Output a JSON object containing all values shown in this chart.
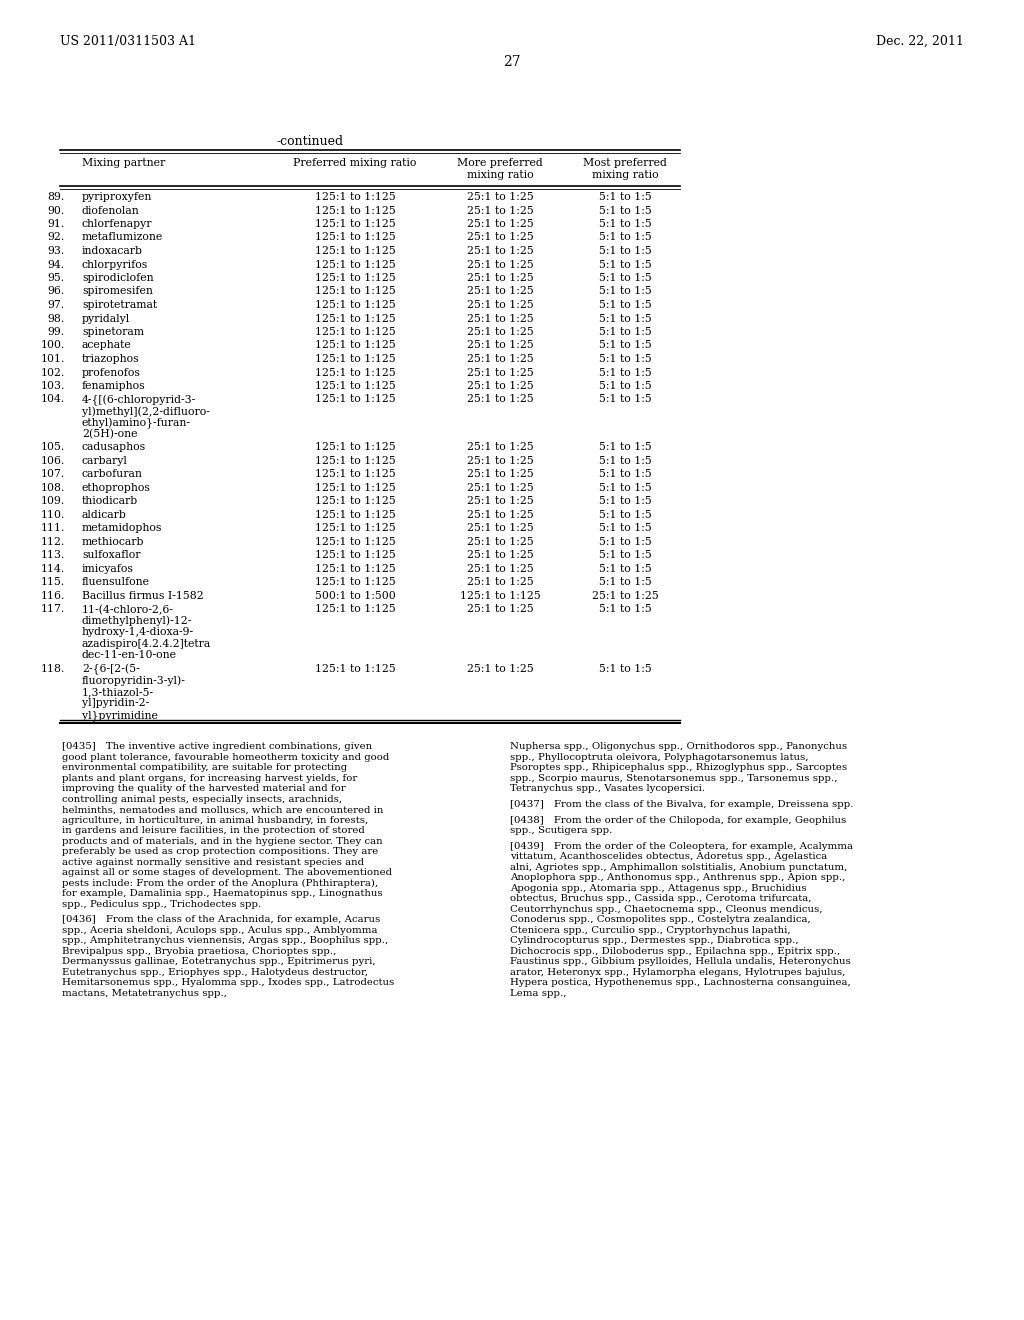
{
  "page_header_left": "US 2011/0311503 A1",
  "page_header_right": "Dec. 22, 2011",
  "page_number": "27",
  "continued_label": "-continued",
  "col_headers": [
    "Mixing partner",
    "Preferred mixing ratio",
    "More preferred\nmixing ratio",
    "Most preferred\nmixing ratio"
  ],
  "rows": [
    {
      "num": "89.",
      "name": "pyriproxyfen",
      "pref": "125:1 to 1:125",
      "more": "25:1 to 1:25",
      "most": "5:1 to 1:5"
    },
    {
      "num": "90.",
      "name": "diofenolan",
      "pref": "125:1 to 1:125",
      "more": "25:1 to 1:25",
      "most": "5:1 to 1:5"
    },
    {
      "num": "91.",
      "name": "chlorfenapyr",
      "pref": "125:1 to 1:125",
      "more": "25:1 to 1:25",
      "most": "5:1 to 1:5"
    },
    {
      "num": "92.",
      "name": "metaflumizone",
      "pref": "125:1 to 1:125",
      "more": "25:1 to 1:25",
      "most": "5:1 to 1:5"
    },
    {
      "num": "93.",
      "name": "indoxacarb",
      "pref": "125:1 to 1:125",
      "more": "25:1 to 1:25",
      "most": "5:1 to 1:5"
    },
    {
      "num": "94.",
      "name": "chlorpyrifos",
      "pref": "125:1 to 1:125",
      "more": "25:1 to 1:25",
      "most": "5:1 to 1:5"
    },
    {
      "num": "95.",
      "name": "spirodiclofen",
      "pref": "125:1 to 1:125",
      "more": "25:1 to 1:25",
      "most": "5:1 to 1:5"
    },
    {
      "num": "96.",
      "name": "spiromesifen",
      "pref": "125:1 to 1:125",
      "more": "25:1 to 1:25",
      "most": "5:1 to 1:5"
    },
    {
      "num": "97.",
      "name": "spirotetramat",
      "pref": "125:1 to 1:125",
      "more": "25:1 to 1:25",
      "most": "5:1 to 1:5"
    },
    {
      "num": "98.",
      "name": "pyridalyl",
      "pref": "125:1 to 1:125",
      "more": "25:1 to 1:25",
      "most": "5:1 to 1:5"
    },
    {
      "num": "99.",
      "name": "spinetoram",
      "pref": "125:1 to 1:125",
      "more": "25:1 to 1:25",
      "most": "5:1 to 1:5"
    },
    {
      "num": "100.",
      "name": "acephate",
      "pref": "125:1 to 1:125",
      "more": "25:1 to 1:25",
      "most": "5:1 to 1:5"
    },
    {
      "num": "101.",
      "name": "triazophos",
      "pref": "125:1 to 1:125",
      "more": "25:1 to 1:25",
      "most": "5:1 to 1:5"
    },
    {
      "num": "102.",
      "name": "profenofos",
      "pref": "125:1 to 1:125",
      "more": "25:1 to 1:25",
      "most": "5:1 to 1:5"
    },
    {
      "num": "103.",
      "name": "fenamiphos",
      "pref": "125:1 to 1:125",
      "more": "25:1 to 1:25",
      "most": "5:1 to 1:5"
    },
    {
      "num": "104.",
      "name": "4-{[(6-chloropyrid-3-\nyl)methyl](2,2-difluoro-\nethyl)amino}-furan-\n2(5H)-one",
      "pref": "125:1 to 1:125",
      "more": "25:1 to 1:25",
      "most": "5:1 to 1:5"
    },
    {
      "num": "105.",
      "name": "cadusaphos",
      "pref": "125:1 to 1:125",
      "more": "25:1 to 1:25",
      "most": "5:1 to 1:5"
    },
    {
      "num": "106.",
      "name": "carbaryl",
      "pref": "125:1 to 1:125",
      "more": "25:1 to 1:25",
      "most": "5:1 to 1:5"
    },
    {
      "num": "107.",
      "name": "carbofuran",
      "pref": "125:1 to 1:125",
      "more": "25:1 to 1:25",
      "most": "5:1 to 1:5"
    },
    {
      "num": "108.",
      "name": "ethoprophos",
      "pref": "125:1 to 1:125",
      "more": "25:1 to 1:25",
      "most": "5:1 to 1:5"
    },
    {
      "num": "109.",
      "name": "thiodicarb",
      "pref": "125:1 to 1:125",
      "more": "25:1 to 1:25",
      "most": "5:1 to 1:5"
    },
    {
      "num": "110.",
      "name": "aldicarb",
      "pref": "125:1 to 1:125",
      "more": "25:1 to 1:25",
      "most": "5:1 to 1:5"
    },
    {
      "num": "111.",
      "name": "metamidophos",
      "pref": "125:1 to 1:125",
      "more": "25:1 to 1:25",
      "most": "5:1 to 1:5"
    },
    {
      "num": "112.",
      "name": "methiocarb",
      "pref": "125:1 to 1:125",
      "more": "25:1 to 1:25",
      "most": "5:1 to 1:5"
    },
    {
      "num": "113.",
      "name": "sulfoxaflor",
      "pref": "125:1 to 1:125",
      "more": "25:1 to 1:25",
      "most": "5:1 to 1:5"
    },
    {
      "num": "114.",
      "name": "imicyafos",
      "pref": "125:1 to 1:125",
      "more": "25:1 to 1:25",
      "most": "5:1 to 1:5"
    },
    {
      "num": "115.",
      "name": "fluensulfone",
      "pref": "125:1 to 1:125",
      "more": "25:1 to 1:25",
      "most": "5:1 to 1:5"
    },
    {
      "num": "116.",
      "name": "Bacillus firmus I-1582",
      "pref": "500:1 to 1:500",
      "more": "125:1 to 1:125",
      "most": "25:1 to 1:25"
    },
    {
      "num": "117.",
      "name": "11-(4-chloro-2,6-\ndimethylphenyl)-12-\nhydroxy-1,4-dioxa-9-\nazadispiro[4.2.4.2]tetra\ndec-11-en-10-one",
      "pref": "125:1 to 1:125",
      "more": "25:1 to 1:25",
      "most": "5:1 to 1:5"
    },
    {
      "num": "118.",
      "name": "2-{6-[2-(5-\nfluoropyridin-3-yl)-\n1,3-thiazol-5-\nyl]pyridin-2-\nyl}pyrimidine",
      "pref": "125:1 to 1:125",
      "more": "25:1 to 1:25",
      "most": "5:1 to 1:5"
    }
  ],
  "body_left": "[0435] The inventive active ingredient combinations, given good plant tolerance, favourable homeotherm toxicity and good environmental compatibility, are suitable for protecting plants and plant organs, for increasing harvest yields, for improving the quality of the harvested material and for controlling animal pests, especially insects, arachnids, helminths, nematodes and molluscs, which are encountered in agriculture, in horticulture, in animal husbandry, in forests, in gardens and leisure facilities, in the protection of stored products and of materials, and in the hygiene sector. They can preferably be used as crop protection compositions. They are active against normally sensitive and resistant species and against all or some stages of development. The abovementioned pests include: From the order of the Anoplura (Phthiraptera), for example, Damalinia spp., Haematopinus spp., Linognathus spp., Pediculus spp., Trichodectes spp.\n\n[0436] From the class of the Arachnida, for example, Acarus spp., Aceria sheldoni, Aculops spp., Aculus spp., Amblyomma spp., Amphitetranychus viennensis, Argas spp., Boophilus spp., Brevipalpus spp., Bryobia praetiosa, Chorioptes spp., Dermanyssus gallinae, Eotetranychus spp., Epitrimerus pyri, Eutetranychus spp., Eriophyes spp., Halotydeus destructor, Hemitarsonemus spp., Hyalomma spp., Ixodes spp., Latrodectus mactans, Metatetranychus spp.,",
  "body_right": "Nuphersa spp., Oligonychus spp., Ornithodoros spp., Panonychus spp., Phyllocoptruta oleivora, Polyphagotarsonemus latus, Psoroptes spp., Rhipicephalus spp., Rhizoglyphus spp., Sarcoptes spp., Scorpio maurus, Stenotarsonemus spp., Tarsonemus spp., Tetranychus spp., Vasates lycopersici.\n\n[0437] From the class of the Bivalva, for example, Dreissena spp.\n\n[0438] From the order of the Chilopoda, for example, Geophilus spp., Scutigera spp.\n\n[0439] From the order of the Coleoptera, for example, Acalymma vittatum, Acanthoscelides obtectus, Adoretus spp., Agelastica alni, Agriotes spp., Amphimallon solstitialis, Anobium punctatum, Anoplophora spp., Anthonomus spp., Anthrenus spp., Apion spp., Apogonia spp., Atomaria spp., Attagenus spp., Bruchidius obtectus, Bruchus spp., Cassida spp., Cerotoma trifurcata, Ceutorrhynchus spp., Chaetocnema spp., Cleonus mendicus, Conoderus spp., Cosmopolites spp., Costelytra zealandica, Ctenicera spp., Curculio spp., Cryptorhynchus lapathi, Cylindrocopturus spp., Dermestes spp., Diabrotica spp., Dichocrocis spp., Diloboderus spp., Epilachna spp., Epitrix spp., Faustinus spp., Gibbium psylloides, Hellula undalis, Heteronychus arator, Heteronyx spp., Hylamorpha elegans, Hylotrupes bajulus, Hypera postica, Hypothenemus spp., Lachnosterna consanguinea, Lema spp.,"
}
